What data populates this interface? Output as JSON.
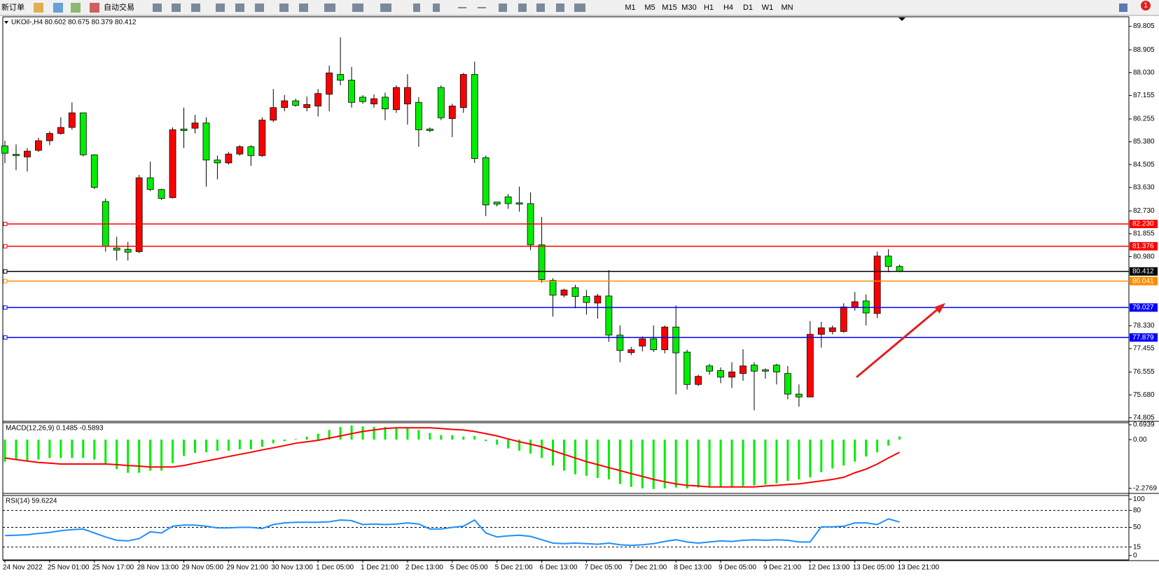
{
  "toolbar": {
    "items": [
      "新订单",
      "自动交易"
    ],
    "timeframes": [
      "M1",
      "M5",
      "M15",
      "M30",
      "H1",
      "H4",
      "D1",
      "W1",
      "MN"
    ],
    "notifications": 1
  },
  "chart_data": [
    {
      "type": "candlestick",
      "title": "UKOil-,H4 80.602 80.675 80.379 80.412",
      "categories": [
        "24 Nov 2022",
        null,
        null,
        null,
        "25 Nov 01:00",
        null,
        null,
        null,
        "25 Nov 17:00",
        null,
        null,
        null,
        "28 Nov 13:00",
        null,
        null,
        null,
        "29 Nov 05:00",
        null,
        null,
        null,
        "29 Nov 21:00",
        null,
        null,
        null,
        "30 Nov 13:00",
        null,
        null,
        null,
        "1 Dec 05:00",
        null,
        null,
        null,
        "1 Dec 21:00",
        null,
        null,
        null,
        "2 Dec 13:00",
        null,
        null,
        null,
        "5 Dec 05:00",
        null,
        null,
        null,
        "5 Dec 21:00",
        null,
        null,
        null,
        "6 Dec 13:00",
        null,
        null,
        null,
        "7 Dec 05:00",
        null,
        null,
        null,
        "7 Dec 21:00",
        null,
        null,
        null,
        "8 Dec 13:00",
        null,
        null,
        null,
        "9 Dec 05:00",
        null,
        null,
        null,
        "9 Dec 21:00",
        null,
        null,
        null,
        "12 Dec 13:00",
        null,
        null,
        null,
        "13 Dec 05:00",
        null,
        null,
        null,
        "13 Dec 21:00"
      ],
      "open": [
        85.22,
        84.9,
        84.8,
        85.05,
        85.42,
        85.7,
        85.93,
        86.49,
        84.88,
        83.09,
        81.31,
        81.26,
        81.17,
        84.0,
        83.55,
        83.24,
        85.87,
        85.9,
        86.1,
        84.68,
        84.57,
        84.91,
        85.19,
        84.85,
        86.21,
        86.69,
        86.95,
        86.69,
        86.75,
        87.2,
        87.96,
        87.74,
        87.09,
        86.83,
        87.09,
        86.61,
        86.83,
        86.89,
        85.87,
        87.46,
        86.27,
        86.69,
        87.96,
        84.77,
        83.07,
        83.27,
        83.04,
        83.01,
        81.43,
        80.07,
        79.5,
        79.79,
        79.45,
        79.2,
        79.47,
        77.97,
        77.3,
        77.55,
        77.83,
        77.41,
        78.28,
        77.32,
        76.08,
        76.79,
        76.61,
        76.36,
        76.5,
        76.82,
        76.64,
        76.82,
        76.5,
        75.71,
        75.6,
        78.0,
        78.11,
        78.11,
        79.03,
        79.28,
        78.8,
        81.0,
        80.602
      ],
      "high": [
        85.42,
        85.28,
        85.14,
        85.53,
        85.78,
        86.32,
        86.89,
        86.49,
        84.9,
        83.21,
        81.74,
        81.54,
        84.11,
        84.62,
        83.58,
        85.93,
        86.69,
        86.41,
        86.32,
        84.85,
        85.0,
        85.25,
        85.25,
        86.32,
        87.4,
        87.17,
        87.03,
        87.11,
        87.4,
        88.3,
        89.38,
        88.25,
        87.17,
        87.2,
        87.26,
        87.54,
        87.97,
        87.09,
        85.93,
        87.54,
        86.84,
        88.02,
        88.45,
        84.85,
        83.07,
        83.38,
        83.66,
        83.44,
        82.5,
        80.15,
        79.75,
        79.9,
        79.7,
        79.55,
        80.46,
        78.34,
        77.52,
        77.92,
        78.34,
        78.34,
        79.11,
        77.41,
        76.45,
        76.87,
        76.73,
        76.93,
        77.43,
        76.93,
        76.7,
        76.87,
        76.79,
        76.08,
        78.51,
        78.48,
        78.34,
        79.19,
        79.62,
        79.53,
        81.17,
        81.26,
        80.675
      ],
      "low": [
        84.56,
        84.29,
        84.24,
        84.99,
        85.25,
        85.65,
        85.84,
        84.82,
        83.57,
        81.17,
        80.83,
        80.83,
        81.11,
        83.49,
        83.15,
        83.21,
        85.14,
        85.7,
        83.66,
        83.94,
        84.51,
        84.85,
        84.46,
        84.8,
        86.13,
        86.55,
        86.72,
        86.55,
        86.35,
        86.55,
        87.54,
        86.69,
        86.83,
        86.69,
        86.21,
        86.49,
        86.04,
        85.19,
        85.75,
        86.21,
        85.56,
        86.49,
        84.57,
        82.53,
        82.9,
        82.81,
        82.7,
        81.23,
        79.98,
        78.68,
        79.42,
        79.0,
        78.76,
        78.6,
        77.71,
        76.93,
        77.2,
        77.35,
        77.32,
        77.27,
        75.7,
        75.88,
        76.02,
        76.45,
        76.13,
        75.94,
        76.22,
        75.09,
        76.3,
        76.08,
        75.51,
        75.23,
        75.6,
        77.49,
        78.0,
        78.06,
        78.91,
        78.34,
        78.62,
        80.38,
        80.379
      ],
      "close": [
        84.94,
        84.85,
        85.02,
        85.42,
        85.7,
        85.93,
        86.49,
        84.88,
        83.63,
        81.37,
        81.23,
        81.15,
        84.0,
        83.55,
        83.21,
        85.84,
        85.81,
        86.1,
        84.68,
        84.57,
        84.91,
        85.19,
        84.85,
        86.21,
        86.69,
        86.95,
        86.78,
        86.81,
        87.23,
        88.02,
        87.74,
        86.89,
        86.92,
        87.03,
        86.64,
        87.46,
        87.46,
        85.84,
        85.81,
        86.3,
        86.75,
        87.96,
        84.74,
        82.96,
        82.99,
        83.01,
        82.99,
        81.43,
        80.1,
        79.5,
        79.7,
        79.45,
        79.22,
        79.47,
        77.97,
        77.38,
        77.41,
        77.83,
        77.41,
        78.28,
        77.29,
        76.08,
        76.39,
        76.59,
        76.36,
        76.56,
        76.79,
        76.59,
        76.59,
        76.56,
        75.71,
        75.6,
        78.0,
        78.25,
        78.25,
        79.05,
        79.25,
        78.82,
        81.0,
        80.6,
        80.412
      ],
      "up_color": "#ff0000",
      "down_color": "#00ee00",
      "ylim": [
        74.72,
        90.17
      ],
      "yticks": [
        89.805,
        88.905,
        {
          "value": 88.03,
          "label": "88.030"
        },
        87.155,
        86.255,
        {
          "value": 85.38,
          "label": "85.380"
        },
        84.505,
        {
          "value": 83.63,
          "label": "83.630"
        },
        {
          "value": 82.73,
          "label": "82.730"
        },
        81.855,
        {
          "value": 80.98,
          "label": "80.980"
        },
        {
          "value": 78.33,
          "label": "78.330"
        },
        77.455,
        76.555,
        {
          "value": 75.68,
          "label": "75.680"
        },
        74.805
      ],
      "hlines": [
        {
          "value": 82.23,
          "label": "82.230",
          "color": "#ff0000"
        },
        {
          "value": 81.376,
          "label": "81.376",
          "color": "#ff0000"
        },
        {
          "value": 80.412,
          "label": "80.412",
          "color": "#000000"
        },
        {
          "value": 80.041,
          "label": "80.041",
          "color": "#ff8c00"
        },
        {
          "value": 79.027,
          "label": "79.027",
          "color": "#0000ff"
        },
        {
          "value": 77.879,
          "label": "77.879",
          "color": "#0000ff"
        }
      ]
    },
    {
      "type": "macd",
      "title": "MACD(12,26,9) 0.1485 -0.5893",
      "series": [
        {
          "color": "#00ee00",
          "values": [
            -1.03,
            -0.93,
            -0.97,
            -0.93,
            -0.86,
            -0.86,
            -0.86,
            -0.86,
            -0.93,
            -1.14,
            -1.38,
            -1.55,
            -1.55,
            -1.45,
            -1.45,
            -1.1,
            -0.76,
            -0.62,
            -0.59,
            -0.52,
            -0.52,
            -0.45,
            -0.45,
            -0.34,
            -0.17,
            -0.07,
            0.03,
            0.14,
            0.28,
            0.45,
            0.59,
            0.66,
            0.62,
            0.59,
            0.59,
            0.52,
            0.52,
            0.45,
            0.31,
            0.21,
            0.21,
            0.14,
            0.17,
            -0.07,
            -0.24,
            -0.41,
            -0.52,
            -0.66,
            -0.86,
            -1.21,
            -1.45,
            -1.62,
            -1.69,
            -1.79,
            -1.86,
            -2.07,
            -2.21,
            -2.28,
            -2.31,
            -2.28,
            -2.24,
            -2.28,
            -2.24,
            -2.24,
            -2.21,
            -2.21,
            -2.17,
            -2.14,
            -2.1,
            -2.04,
            -1.93,
            -1.86,
            -1.76,
            -1.52,
            -1.35,
            -1.21,
            -1.03,
            -0.79,
            -0.59,
            -0.28,
            0.1485
          ]
        },
        {
          "color": "#ff0000",
          "values": [
            -0.86,
            -0.93,
            -1.0,
            -1.07,
            -1.1,
            -1.14,
            -1.14,
            -1.14,
            -1.14,
            -1.14,
            -1.17,
            -1.21,
            -1.24,
            -1.28,
            -1.28,
            -1.28,
            -1.21,
            -1.1,
            -1.0,
            -0.9,
            -0.79,
            -0.69,
            -0.59,
            -0.48,
            -0.38,
            -0.28,
            -0.17,
            -0.1,
            -0.03,
            0.07,
            0.17,
            0.28,
            0.38,
            0.45,
            0.52,
            0.55,
            0.55,
            0.55,
            0.55,
            0.52,
            0.48,
            0.45,
            0.38,
            0.28,
            0.17,
            0.03,
            -0.1,
            -0.21,
            -0.34,
            -0.52,
            -0.69,
            -0.86,
            -1.03,
            -1.17,
            -1.31,
            -1.45,
            -1.59,
            -1.72,
            -1.86,
            -1.97,
            -2.07,
            -2.14,
            -2.17,
            -2.21,
            -2.21,
            -2.21,
            -2.21,
            -2.21,
            -2.17,
            -2.14,
            -2.1,
            -2.07,
            -2.0,
            -1.93,
            -1.86,
            -1.76,
            -1.55,
            -1.38,
            -1.14,
            -0.86,
            -0.5893
          ]
        }
      ],
      "ylim": [
        -2.45,
        0.79
      ],
      "yticks": [
        0.6939,
        {
          "value": 0,
          "label": "0.00"
        },
        -2.2769
      ]
    },
    {
      "type": "line",
      "title": "RSI(14) 59.6224",
      "series": [
        {
          "color": "#1e90ff",
          "values": [
            35.5,
            36,
            37,
            39,
            41,
            44,
            46,
            47,
            40,
            33,
            27,
            26,
            30,
            42,
            40,
            52,
            54,
            54,
            52,
            49,
            49,
            50,
            50,
            48,
            55,
            58,
            59,
            59,
            59,
            60,
            63,
            62,
            55,
            56,
            55,
            56,
            58,
            56,
            47,
            47,
            50,
            52,
            63,
            40,
            33,
            35,
            36,
            34,
            28,
            22,
            21,
            22,
            21,
            20,
            22,
            19,
            18,
            19,
            21,
            25,
            28,
            24,
            22,
            24,
            26,
            25,
            27,
            28,
            27,
            28,
            27,
            24,
            24,
            51,
            51,
            52,
            58,
            58,
            55,
            65,
            59.6224
          ]
        }
      ],
      "ylim": [
        -6.6,
        106.6
      ],
      "yticks": [
        100,
        80,
        50,
        15,
        0
      ],
      "levels": [
        80,
        50,
        15
      ]
    }
  ]
}
